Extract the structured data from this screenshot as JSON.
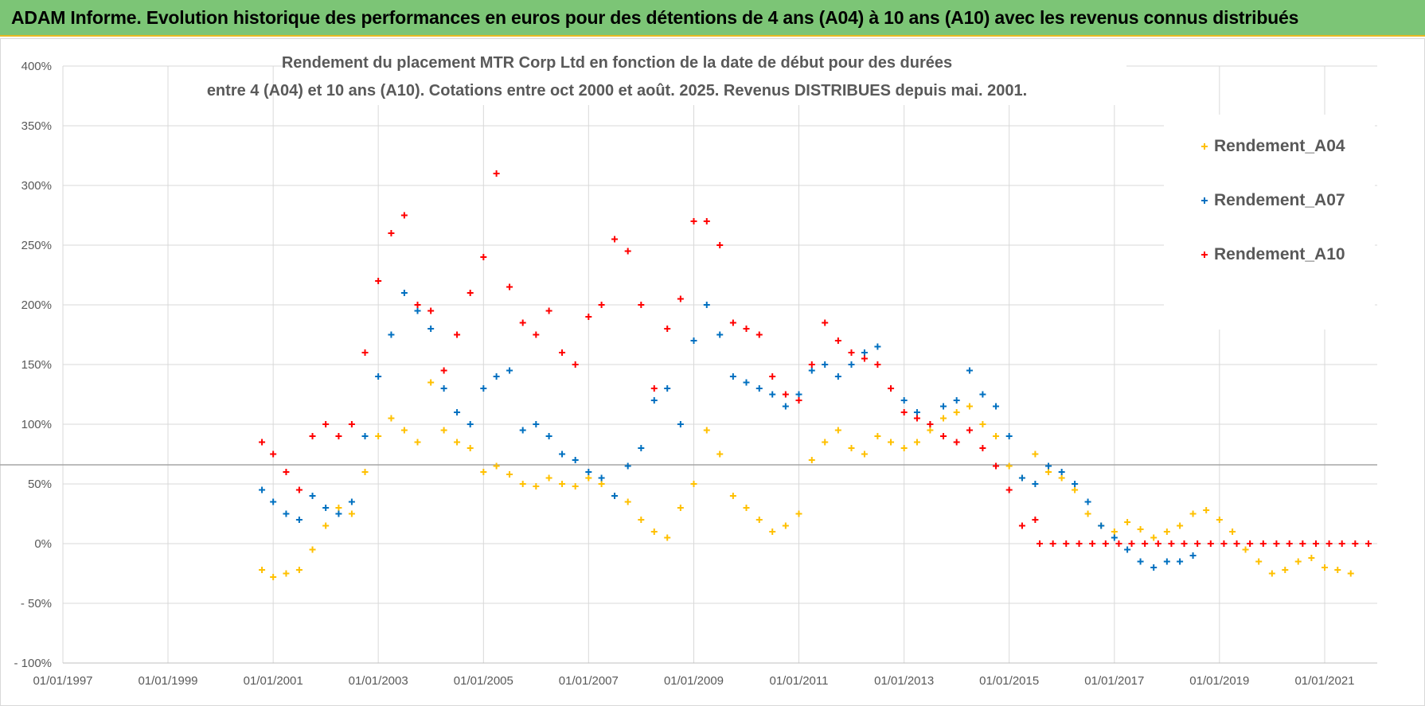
{
  "header": {
    "banner": "ADAM Informe. Evolution historique des performances en euros pour des détentions de 4 ans (A04) à 10 ans (A10) avec les revenus connus distribués"
  },
  "chart_data": {
    "type": "scatter",
    "title_lines": [
      "Rendement du placement MTR Corp Ltd en fonction de la date de début pour des durées",
      "entre 4 (A04) et 10 ans (A10). Cotations entre oct 2000 et août. 2025. Revenus DISTRIBUES depuis mai. 2001."
    ],
    "xlabel": "",
    "ylabel": "",
    "x_range": [
      "1997-01-01",
      "2022-01-01"
    ],
    "ylim": [
      -100,
      400
    ],
    "y_ticks": [
      -100,
      -50,
      0,
      50,
      100,
      150,
      200,
      250,
      300,
      350,
      400
    ],
    "y_tick_labels": [
      "- 100%",
      "- 50%",
      "0%",
      "50%",
      "100%",
      "150%",
      "200%",
      "250%",
      "300%",
      "350%",
      "400%"
    ],
    "x_ticks": [
      "1997-01-01",
      "1999-01-01",
      "2001-01-01",
      "2003-01-01",
      "2005-01-01",
      "2007-01-01",
      "2009-01-01",
      "2011-01-01",
      "2013-01-01",
      "2015-01-01",
      "2017-01-01",
      "2019-01-01",
      "2021-01-01"
    ],
    "x_tick_labels": [
      "01/01/1997",
      "01/01/1999",
      "01/01/2001",
      "01/01/2003",
      "01/01/2005",
      "01/01/2007",
      "01/01/2009",
      "01/01/2011",
      "01/01/2013",
      "01/01/2015",
      "01/01/2017",
      "01/01/2019",
      "01/01/2021"
    ],
    "grid": true,
    "legend_position": "top-right",
    "marker": "+",
    "reference_line_y": 66,
    "series": [
      {
        "name": "Rendement_A04",
        "color": "#ffc000",
        "x": [
          "2000-10-15",
          "2001-01-01",
          "2001-04-01",
          "2001-07-01",
          "2001-10-01",
          "2002-01-01",
          "2002-04-01",
          "2002-07-01",
          "2002-10-01",
          "2003-01-01",
          "2003-04-01",
          "2003-07-01",
          "2003-10-01",
          "2004-01-01",
          "2004-04-01",
          "2004-07-01",
          "2004-10-01",
          "2005-01-01",
          "2005-04-01",
          "2005-07-01",
          "2005-10-01",
          "2006-01-01",
          "2006-04-01",
          "2006-07-01",
          "2006-10-01",
          "2007-01-01",
          "2007-04-01",
          "2007-07-01",
          "2007-10-01",
          "2008-01-01",
          "2008-04-01",
          "2008-07-01",
          "2008-10-01",
          "2009-01-01",
          "2009-04-01",
          "2009-07-01",
          "2009-10-01",
          "2010-01-01",
          "2010-04-01",
          "2010-07-01",
          "2010-10-01",
          "2011-01-01",
          "2011-04-01",
          "2011-07-01",
          "2011-10-01",
          "2012-01-01",
          "2012-04-01",
          "2012-07-01",
          "2012-10-01",
          "2013-01-01",
          "2013-04-01",
          "2013-07-01",
          "2013-10-01",
          "2014-01-01",
          "2014-04-01",
          "2014-07-01",
          "2014-10-01",
          "2015-01-01",
          "2015-04-01",
          "2015-07-01",
          "2015-10-01",
          "2016-01-01",
          "2016-04-01",
          "2016-07-01",
          "2016-10-01",
          "2017-01-01",
          "2017-04-01",
          "2017-07-01",
          "2017-10-01",
          "2018-01-01",
          "2018-04-01",
          "2018-07-01",
          "2018-10-01",
          "2019-01-01",
          "2019-04-01",
          "2019-07-01",
          "2019-10-01",
          "2020-01-01",
          "2020-04-01",
          "2020-07-01",
          "2020-10-01",
          "2021-01-01",
          "2021-04-01",
          "2021-07-01"
        ],
        "values": [
          -22,
          -28,
          -25,
          -22,
          -5,
          15,
          30,
          25,
          60,
          90,
          105,
          95,
          85,
          135,
          95,
          85,
          80,
          60,
          65,
          58,
          50,
          48,
          55,
          50,
          48,
          55,
          50,
          40,
          35,
          20,
          10,
          5,
          30,
          50,
          95,
          75,
          40,
          30,
          20,
          10,
          15,
          25,
          70,
          85,
          95,
          80,
          75,
          90,
          85,
          80,
          85,
          95,
          105,
          110,
          115,
          100,
          90,
          65,
          55,
          75,
          60,
          55,
          45,
          25,
          15,
          10,
          18,
          12,
          5,
          10,
          15,
          25,
          28,
          20,
          10,
          -5,
          -15,
          -25,
          -22,
          -15,
          -12,
          -20,
          -22,
          -25
        ]
      },
      {
        "name": "Rendement_A07",
        "color": "#0070c0",
        "x": [
          "2000-10-15",
          "2001-01-01",
          "2001-04-01",
          "2001-07-01",
          "2001-10-01",
          "2002-01-01",
          "2002-04-01",
          "2002-07-01",
          "2002-10-01",
          "2003-01-01",
          "2003-04-01",
          "2003-07-01",
          "2003-10-01",
          "2004-01-01",
          "2004-04-01",
          "2004-07-01",
          "2004-10-01",
          "2005-01-01",
          "2005-04-01",
          "2005-07-01",
          "2005-10-01",
          "2006-01-01",
          "2006-04-01",
          "2006-07-01",
          "2006-10-01",
          "2007-01-01",
          "2007-04-01",
          "2007-07-01",
          "2007-10-01",
          "2008-01-01",
          "2008-04-01",
          "2008-07-01",
          "2008-10-01",
          "2009-01-01",
          "2009-04-01",
          "2009-07-01",
          "2009-10-01",
          "2010-01-01",
          "2010-04-01",
          "2010-07-01",
          "2010-10-01",
          "2011-01-01",
          "2011-04-01",
          "2011-07-01",
          "2011-10-01",
          "2012-01-01",
          "2012-04-01",
          "2012-07-01",
          "2012-10-01",
          "2013-01-01",
          "2013-04-01",
          "2013-07-01",
          "2013-10-01",
          "2014-01-01",
          "2014-04-01",
          "2014-07-01",
          "2014-10-01",
          "2015-01-01",
          "2015-04-01",
          "2015-07-01",
          "2015-10-01",
          "2016-01-01",
          "2016-04-01",
          "2016-07-01",
          "2016-10-01",
          "2017-01-01",
          "2017-04-01",
          "2017-07-01",
          "2017-10-01",
          "2018-01-01",
          "2018-04-01",
          "2018-07-01"
        ],
        "values": [
          45,
          35,
          25,
          20,
          40,
          30,
          25,
          35,
          90,
          140,
          175,
          210,
          195,
          180,
          130,
          110,
          100,
          130,
          140,
          145,
          95,
          100,
          90,
          75,
          70,
          60,
          55,
          40,
          65,
          80,
          120,
          130,
          100,
          170,
          200,
          175,
          140,
          135,
          130,
          125,
          115,
          125,
          145,
          150,
          140,
          150,
          160,
          165,
          130,
          120,
          110,
          100,
          115,
          120,
          145,
          125,
          115,
          90,
          55,
          50,
          65,
          60,
          50,
          35,
          15,
          5,
          -5,
          -15,
          -20,
          -15,
          -15,
          -10
        ]
      },
      {
        "name": "Rendement_A10",
        "color": "#ff0000",
        "x": [
          "2000-10-15",
          "2001-01-01",
          "2001-04-01",
          "2001-07-01",
          "2001-10-01",
          "2002-01-01",
          "2002-04-01",
          "2002-07-01",
          "2002-10-01",
          "2003-01-01",
          "2003-04-01",
          "2003-07-01",
          "2003-10-01",
          "2004-01-01",
          "2004-04-01",
          "2004-07-01",
          "2004-10-01",
          "2005-01-01",
          "2005-04-01",
          "2005-07-01",
          "2005-10-01",
          "2006-01-01",
          "2006-04-01",
          "2006-07-01",
          "2006-10-01",
          "2007-01-01",
          "2007-04-01",
          "2007-07-01",
          "2007-10-01",
          "2008-01-01",
          "2008-04-01",
          "2008-07-01",
          "2008-10-01",
          "2009-01-01",
          "2009-04-01",
          "2009-07-01",
          "2009-10-01",
          "2010-01-01",
          "2010-04-01",
          "2010-07-01",
          "2010-10-01",
          "2011-01-01",
          "2011-04-01",
          "2011-07-01",
          "2011-10-01",
          "2012-01-01",
          "2012-04-01",
          "2012-07-01",
          "2012-10-01",
          "2013-01-01",
          "2013-04-01",
          "2013-07-01",
          "2013-10-01",
          "2014-01-01",
          "2014-04-01",
          "2014-07-01",
          "2014-10-01",
          "2015-01-01",
          "2015-04-01",
          "2015-07-01"
        ],
        "values": [
          85,
          75,
          60,
          45,
          90,
          100,
          90,
          100,
          160,
          220,
          260,
          275,
          200,
          195,
          145,
          175,
          210,
          240,
          310,
          215,
          185,
          175,
          195,
          160,
          150,
          190,
          200,
          255,
          245,
          200,
          130,
          180,
          205,
          270,
          270,
          250,
          185,
          180,
          175,
          140,
          125,
          120,
          150,
          185,
          170,
          160,
          155,
          150,
          130,
          110,
          105,
          100,
          90,
          85,
          95,
          80,
          65,
          45,
          15,
          20
        ]
      },
      {
        "name": "",
        "color": "#ff0000",
        "x": [
          "2015-08-01",
          "2015-11-01",
          "2016-02-01",
          "2016-05-01",
          "2016-08-01",
          "2016-11-01",
          "2017-02-01",
          "2017-05-01",
          "2017-08-01",
          "2017-11-01",
          "2018-02-01",
          "2018-05-01",
          "2018-08-01",
          "2018-11-01",
          "2019-02-01",
          "2019-05-01",
          "2019-08-01",
          "2019-11-01",
          "2020-02-01",
          "2020-05-01",
          "2020-08-01",
          "2020-11-01",
          "2021-02-01",
          "2021-05-01",
          "2021-08-01",
          "2021-11-01"
        ],
        "values": [
          0,
          0,
          0,
          0,
          0,
          0,
          0,
          0,
          0,
          0,
          0,
          0,
          0,
          0,
          0,
          0,
          0,
          0,
          0,
          0,
          0,
          0,
          0,
          0,
          0,
          0
        ]
      }
    ]
  }
}
